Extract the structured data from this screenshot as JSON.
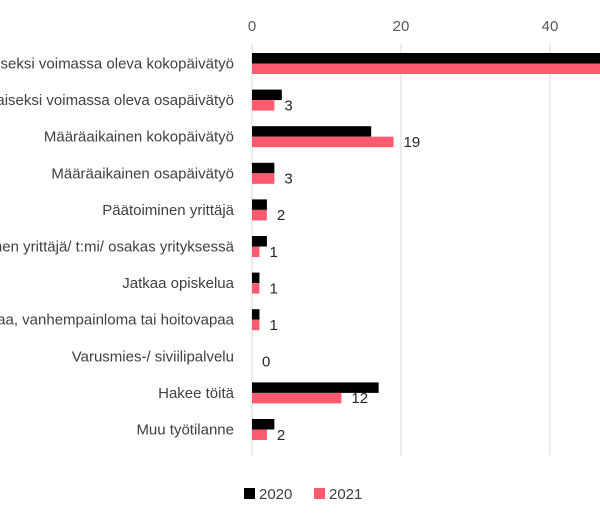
{
  "chart_data": {
    "type": "bar",
    "orientation": "horizontal",
    "categories": [
      "Toistaiseksi voimassa oleva kokopäivätyö",
      "Toistaiseksi voimassa oleva osapäivätyö",
      "Määräaikainen kokopäivätyö",
      "Määräaikainen osapäivätyö",
      "Päätoiminen yrittäjä",
      "Sivutoiminen yrittäjä/ t:mi/ osakas yrityksessä",
      "Jatkaa opiskelua",
      "Perhevapaa, vanhempainloma tai hoitovapaa",
      "Varusmies-/ siviilipalvelu",
      "Hakee töitä",
      "Muu työtilanne"
    ],
    "series": [
      {
        "name": "2020",
        "color": "#000000",
        "values": [
          47,
          4,
          16,
          3,
          2,
          2,
          1,
          1,
          0,
          17,
          3
        ]
      },
      {
        "name": "2021",
        "color": "#ff5a6e",
        "values": [
          48,
          3,
          19,
          3,
          2,
          1,
          1,
          1,
          0,
          12,
          2
        ]
      }
    ],
    "data_labels": {
      "series": "2021",
      "texts": [
        "",
        "3",
        "19",
        "3",
        "2",
        "1",
        "1",
        "1",
        "0",
        "12",
        "2"
      ]
    },
    "xticks": [
      "0",
      "20",
      "40"
    ],
    "xlim": [
      0,
      60
    ],
    "gridlines": true,
    "legend_position": "bottom"
  }
}
